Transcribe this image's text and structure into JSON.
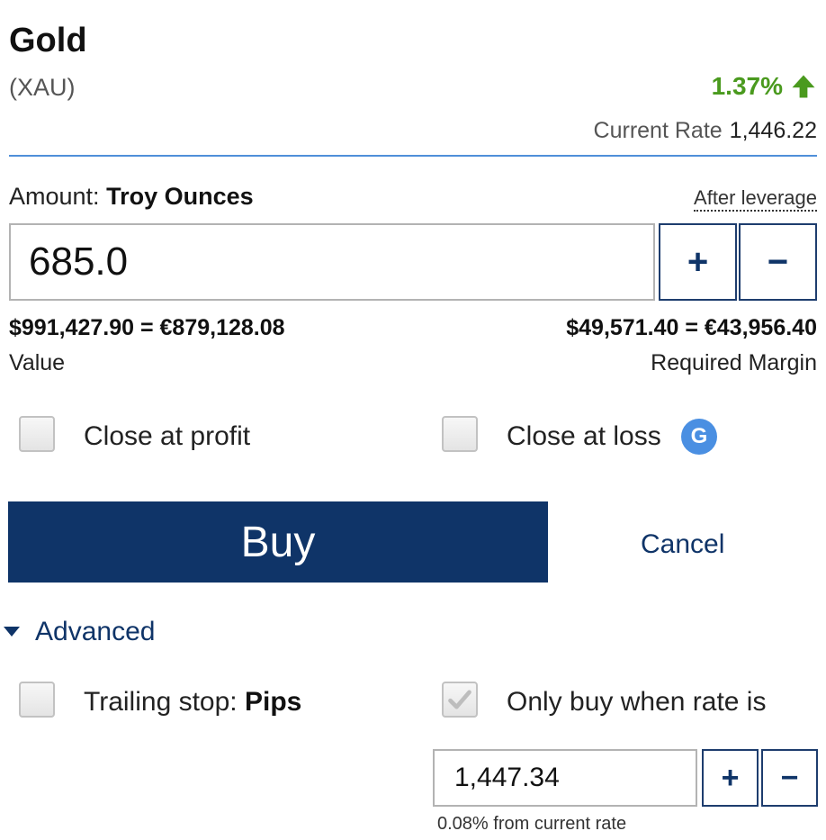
{
  "instrument": {
    "name": "Gold",
    "symbol": "(XAU)",
    "change": "1.37%",
    "change_direction_icon": "arrow-up-icon",
    "current_rate_label": "Current Rate",
    "current_rate": "1,446.22"
  },
  "amount": {
    "label": "Amount:",
    "unit": "Troy Ounces",
    "after_leverage": "After leverage",
    "value": "685.0",
    "plus": "+",
    "minus": "−"
  },
  "summary": {
    "value_amount": "$991,427.90 = €879,128.08",
    "value_label": "Value",
    "margin_amount": "$49,571.40 = €43,956.40",
    "margin_label": "Required Margin"
  },
  "options": {
    "close_at_profit": "Close at profit",
    "close_at_loss": "Close at loss",
    "guaranteed_badge": "G"
  },
  "actions": {
    "buy": "Buy",
    "cancel": "Cancel"
  },
  "advanced": {
    "label": "Advanced",
    "trailing_stop_label": "Trailing stop:",
    "trailing_stop_unit": "Pips",
    "only_buy_label": "Only buy when rate is",
    "only_buy_checked": true,
    "rate_value": "1,447.34",
    "plus": "+",
    "minus": "−",
    "from_rate_text": "0.08%  from current rate"
  },
  "colors": {
    "primary": "#0f3468",
    "positive": "#4a9a1e",
    "divider": "#4f8fd9",
    "badge": "#4a8fe2"
  }
}
